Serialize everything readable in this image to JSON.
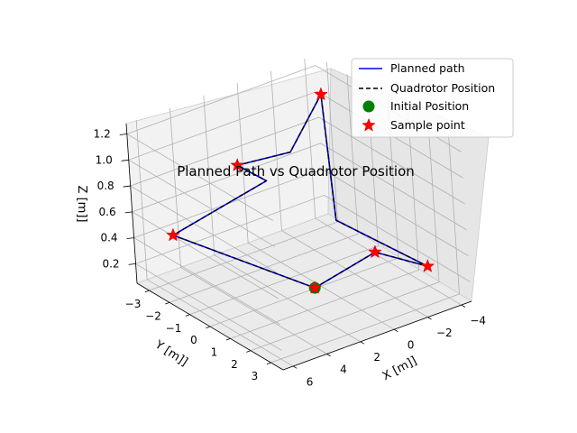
{
  "chart_data": {
    "type": "line",
    "projection": "3d",
    "title": "Planned Path vs Quadrotor Position",
    "xlabel": "X [m]]",
    "ylabel": "Y [m]]",
    "zlabel": "Z [m]]",
    "x_ticks": [
      "−4",
      "−2",
      "0",
      "2",
      "4",
      "6"
    ],
    "y_ticks": [
      "−3",
      "−2",
      "−1",
      "0",
      "1",
      "2",
      "3"
    ],
    "z_ticks": [
      "0.2",
      "0.4",
      "0.6",
      "0.8",
      "1.0",
      "1.2"
    ],
    "xlim": [
      6.6,
      -4.6
    ],
    "ylim": [
      -3.6,
      3.6
    ],
    "zlim": [
      0.05,
      1.28
    ],
    "grid": true,
    "legend_position": "top-right",
    "legend": [
      "Planned path",
      "Quadrotor Position",
      "Initial Position",
      "Sample point"
    ],
    "series": [
      {
        "name": "Planned path",
        "style": "solid",
        "color": "#0000ff",
        "points": [
          [
            1.5,
            1.0,
            0.2
          ],
          [
            -1.0,
            2.0,
            0.45
          ],
          [
            -4.0,
            2.0,
            0.2
          ],
          [
            0.0,
            1.0,
            0.65
          ],
          [
            -3.0,
            -2.0,
            1.2
          ],
          [
            -1.0,
            -2.0,
            0.85
          ],
          [
            1.0,
            -3.0,
            0.75
          ],
          [
            0.5,
            -2.0,
            0.7
          ],
          [
            5.0,
            -3.0,
            0.4
          ],
          [
            1.5,
            1.0,
            0.2
          ]
        ]
      },
      {
        "name": "Quadrotor Position",
        "style": "dashed",
        "color": "#000000",
        "points": [
          [
            1.5,
            1.0,
            0.2
          ],
          [
            -1.0,
            2.0,
            0.45
          ],
          [
            -4.0,
            2.0,
            0.2
          ],
          [
            0.0,
            1.0,
            0.65
          ],
          [
            -3.0,
            -2.0,
            1.2
          ],
          [
            -1.0,
            -2.0,
            0.85
          ],
          [
            1.0,
            -3.0,
            0.75
          ],
          [
            0.5,
            -2.0,
            0.7
          ],
          [
            5.0,
            -3.0,
            0.4
          ],
          [
            1.5,
            1.0,
            0.2
          ]
        ]
      }
    ],
    "initial_position": {
      "name": "Initial Position",
      "color": "#008000",
      "point": [
        1.5,
        1.0,
        0.2
      ]
    },
    "sample_points": {
      "name": "Sample point",
      "color": "#ff0000",
      "points": [
        [
          1.5,
          1.0,
          0.2
        ],
        [
          -4.0,
          2.0,
          0.2
        ],
        [
          -1.0,
          2.0,
          0.45
        ],
        [
          -3.0,
          -2.0,
          1.2
        ],
        [
          1.0,
          -3.0,
          0.75
        ],
        [
          5.0,
          -3.0,
          0.4
        ]
      ]
    }
  }
}
